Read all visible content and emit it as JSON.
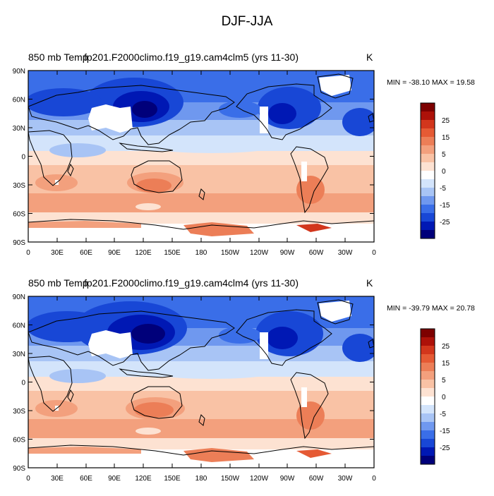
{
  "title": "DJF-JJA",
  "colors": {
    "levels": [
      "#00007a",
      "#0018b4",
      "#1847d6",
      "#3a6ee8",
      "#6f98ef",
      "#a8c4f5",
      "#d3e4fb",
      "#ffffff",
      "#fde2d2",
      "#f9c2a5",
      "#f3a07d",
      "#ec7e57",
      "#e55a34",
      "#d2361c",
      "#ad1109",
      "#7d0000"
    ],
    "land_outline": "#000000",
    "mask": "#ffffff"
  },
  "panels": [
    {
      "variable": "850 mb Temp",
      "case": "fp201.F2000climo.f19_g19.cam4clm5 (yrs 11-30)",
      "unit": "K",
      "minmax": "MIN = -38.10 MAX =  19.58"
    },
    {
      "variable": "850 mb Temp",
      "case": "fp201.F2000climo.f19_g19.cam4clm4 (yrs 11-30)",
      "unit": "K",
      "minmax": "MIN = -39.79 MAX =  20.78"
    }
  ],
  "lat_labels": [
    "90N",
    "60N",
    "30N",
    "0",
    "30S",
    "60S",
    "90S"
  ],
  "lon_labels": [
    "0",
    "30E",
    "60E",
    "90E",
    "120E",
    "150E",
    "180",
    "150W",
    "120W",
    "90W",
    "60W",
    "30W",
    "0"
  ],
  "colorbar_labels": [
    "25",
    "15",
    "5",
    "0",
    "-5",
    "-15",
    "-25"
  ]
}
